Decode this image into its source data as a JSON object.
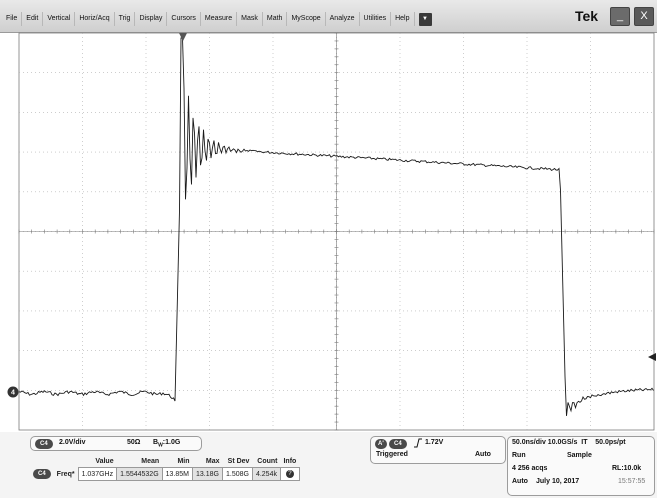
{
  "menu": {
    "items": [
      "File",
      "Edit",
      "Vertical",
      "Horiz/Acq",
      "Trig",
      "Display",
      "Cursors",
      "Measure",
      "Mask",
      "Math",
      "MyScope",
      "Analyze",
      "Utilities",
      "Help"
    ],
    "dropdown_icon": "caret-down-icon",
    "brand": "Tek",
    "minimize_label": "_",
    "close_label": "X"
  },
  "scope": {
    "channel_marker": "4",
    "trigger_marker_icon": "triangle-down-icon",
    "trigger_level_icon": "arrow-left-icon"
  },
  "channel": {
    "badge": "C4",
    "scale": "2.0V/div",
    "impedance": "50Ω",
    "bandwidth_prefix": "B",
    "bandwidth_sub": "W",
    "bandwidth_value": ":1.0G"
  },
  "measurements": {
    "headers": [
      "Value",
      "Mean",
      "Min",
      "Max",
      "St Dev",
      "Count",
      "Info"
    ],
    "rows": [
      {
        "badge": "C4",
        "label": "Freq*",
        "values": [
          "1.037GHz",
          "1.5544532G",
          "13.85M",
          "13.18G",
          "1.508G",
          "4.254k"
        ],
        "info_icon": "question-icon"
      }
    ]
  },
  "trigger": {
    "badge_a": "A'",
    "badge_ch": "C4",
    "slope_icon": "rising-edge-icon",
    "level": "1.72V",
    "state": "Triggered",
    "mode": "Auto"
  },
  "acquisition": {
    "line1": "50.0ns/div 10.0GS/s  IT    50.0ps/pt",
    "run": "Run",
    "sample": "Sample",
    "acqs": "4 256 acqs",
    "rl": "RL:10.0k",
    "auto": "Auto",
    "date": "July 10, 2017",
    "time": "15:57:55"
  },
  "colors": {
    "trace": "#1a1a1a",
    "grid_major": "#7a7a7a",
    "grid_minor": "#b0b0b0",
    "badge": "#4a4a4a"
  }
}
